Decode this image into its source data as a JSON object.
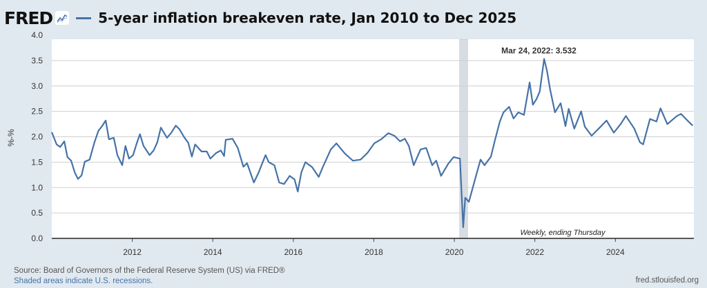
{
  "header": {
    "logo": "FRED",
    "title": "5-year inflation breakeven rate, Jan 2010 to Dec 2025"
  },
  "footer": {
    "source": "Source: Board of Governors of the Federal Reserve System (US) via FRED®",
    "recessions_note": "Shaded areas indicate U.S. recessions.",
    "site": "fred.stlouisfed.org"
  },
  "colors": {
    "series": "#4572a7",
    "background": "#e1e9f0",
    "recession": "#d8dde3"
  },
  "chart_data": {
    "type": "line",
    "title": "5-year inflation breakeven rate, Jan 2010 to Dec 2025",
    "ylabel": "%-%",
    "xlabel": "",
    "frequency_note": "Weekly, ending Thursday",
    "annotation": {
      "label": "Mar 24, 2022:",
      "value": "3.532",
      "x": 2022.23,
      "y": 3.532
    },
    "xlim": [
      2010.0,
      2025.95
    ],
    "ylim": [
      0,
      4
    ],
    "grid": true,
    "x_ticks": [
      2012,
      2014,
      2016,
      2018,
      2020,
      2022,
      2024
    ],
    "x_tick_labels": [
      "2012",
      "2014",
      "2016",
      "2018",
      "2020",
      "2022",
      "2024"
    ],
    "y_ticks": [
      0,
      0.5,
      1,
      1.5,
      2,
      2.5,
      3,
      3.5,
      4
    ],
    "y_tick_labels": [
      "0.0",
      "0.5",
      "1.0",
      "1.5",
      "2.0",
      "2.5",
      "3.0",
      "3.5",
      "4.0"
    ],
    "recessions": [
      [
        2020.13,
        2020.33
      ]
    ],
    "series": [
      {
        "name": "5-year inflation breakeven rate",
        "points": [
          [
            2010.0,
            2.09
          ],
          [
            2010.12,
            1.85
          ],
          [
            2010.21,
            1.8
          ],
          [
            2010.31,
            1.91
          ],
          [
            2010.39,
            1.6
          ],
          [
            2010.48,
            1.53
          ],
          [
            2010.57,
            1.3
          ],
          [
            2010.65,
            1.17
          ],
          [
            2010.74,
            1.24
          ],
          [
            2010.82,
            1.51
          ],
          [
            2010.94,
            1.55
          ],
          [
            2011.06,
            1.89
          ],
          [
            2011.16,
            2.12
          ],
          [
            2011.25,
            2.21
          ],
          [
            2011.34,
            2.32
          ],
          [
            2011.42,
            1.95
          ],
          [
            2011.54,
            1.98
          ],
          [
            2011.63,
            1.64
          ],
          [
            2011.75,
            1.44
          ],
          [
            2011.83,
            1.82
          ],
          [
            2011.92,
            1.57
          ],
          [
            2012.02,
            1.64
          ],
          [
            2012.11,
            1.87
          ],
          [
            2012.19,
            2.05
          ],
          [
            2012.28,
            1.82
          ],
          [
            2012.43,
            1.64
          ],
          [
            2012.53,
            1.73
          ],
          [
            2012.62,
            1.89
          ],
          [
            2012.71,
            2.18
          ],
          [
            2012.86,
            1.98
          ],
          [
            2012.96,
            2.07
          ],
          [
            2013.08,
            2.22
          ],
          [
            2013.17,
            2.15
          ],
          [
            2013.29,
            1.99
          ],
          [
            2013.39,
            1.88
          ],
          [
            2013.48,
            1.61
          ],
          [
            2013.56,
            1.85
          ],
          [
            2013.72,
            1.71
          ],
          [
            2013.85,
            1.71
          ],
          [
            2013.94,
            1.57
          ],
          [
            2014.08,
            1.68
          ],
          [
            2014.2,
            1.73
          ],
          [
            2014.28,
            1.62
          ],
          [
            2014.32,
            1.94
          ],
          [
            2014.49,
            1.96
          ],
          [
            2014.62,
            1.78
          ],
          [
            2014.76,
            1.41
          ],
          [
            2014.85,
            1.48
          ],
          [
            2015.02,
            1.1
          ],
          [
            2015.14,
            1.3
          ],
          [
            2015.31,
            1.64
          ],
          [
            2015.39,
            1.5
          ],
          [
            2015.53,
            1.44
          ],
          [
            2015.65,
            1.1
          ],
          [
            2015.77,
            1.07
          ],
          [
            2015.91,
            1.23
          ],
          [
            2016.03,
            1.16
          ],
          [
            2016.11,
            0.92
          ],
          [
            2016.2,
            1.3
          ],
          [
            2016.3,
            1.5
          ],
          [
            2016.47,
            1.4
          ],
          [
            2016.63,
            1.21
          ],
          [
            2016.73,
            1.4
          ],
          [
            2016.93,
            1.75
          ],
          [
            2017.07,
            1.87
          ],
          [
            2017.28,
            1.67
          ],
          [
            2017.48,
            1.53
          ],
          [
            2017.67,
            1.55
          ],
          [
            2017.84,
            1.68
          ],
          [
            2018.01,
            1.87
          ],
          [
            2018.18,
            1.95
          ],
          [
            2018.36,
            2.07
          ],
          [
            2018.51,
            2.02
          ],
          [
            2018.65,
            1.91
          ],
          [
            2018.77,
            1.96
          ],
          [
            2018.87,
            1.82
          ],
          [
            2018.99,
            1.44
          ],
          [
            2019.16,
            1.75
          ],
          [
            2019.3,
            1.78
          ],
          [
            2019.45,
            1.44
          ],
          [
            2019.55,
            1.53
          ],
          [
            2019.67,
            1.23
          ],
          [
            2019.85,
            1.47
          ],
          [
            2019.98,
            1.6
          ],
          [
            2020.14,
            1.57
          ],
          [
            2020.22,
            0.22
          ],
          [
            2020.27,
            0.8
          ],
          [
            2020.36,
            0.72
          ],
          [
            2020.53,
            1.21
          ],
          [
            2020.65,
            1.55
          ],
          [
            2020.75,
            1.44
          ],
          [
            2020.91,
            1.61
          ],
          [
            2021.01,
            1.94
          ],
          [
            2021.13,
            2.3
          ],
          [
            2021.22,
            2.48
          ],
          [
            2021.36,
            2.59
          ],
          [
            2021.47,
            2.36
          ],
          [
            2021.59,
            2.48
          ],
          [
            2021.73,
            2.43
          ],
          [
            2021.87,
            3.07
          ],
          [
            2021.95,
            2.63
          ],
          [
            2022.04,
            2.74
          ],
          [
            2022.12,
            2.89
          ],
          [
            2022.23,
            3.532
          ],
          [
            2022.3,
            3.3
          ],
          [
            2022.38,
            2.93
          ],
          [
            2022.5,
            2.48
          ],
          [
            2022.64,
            2.66
          ],
          [
            2022.76,
            2.21
          ],
          [
            2022.84,
            2.55
          ],
          [
            2022.98,
            2.16
          ],
          [
            2023.15,
            2.5
          ],
          [
            2023.24,
            2.2
          ],
          [
            2023.41,
            2.02
          ],
          [
            2023.61,
            2.18
          ],
          [
            2023.78,
            2.32
          ],
          [
            2023.96,
            2.08
          ],
          [
            2024.13,
            2.25
          ],
          [
            2024.26,
            2.41
          ],
          [
            2024.47,
            2.16
          ],
          [
            2024.61,
            1.89
          ],
          [
            2024.69,
            1.85
          ],
          [
            2024.86,
            2.35
          ],
          [
            2025.02,
            2.3
          ],
          [
            2025.12,
            2.56
          ],
          [
            2025.29,
            2.25
          ],
          [
            2025.53,
            2.41
          ],
          [
            2025.63,
            2.45
          ],
          [
            2025.79,
            2.32
          ],
          [
            2025.92,
            2.22
          ]
        ]
      }
    ]
  }
}
